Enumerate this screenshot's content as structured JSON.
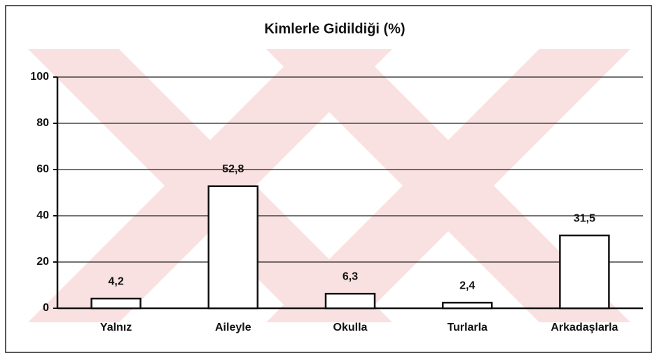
{
  "chart_data": {
    "type": "bar",
    "title": "Kimlerle Gidildiği (%)",
    "categories": [
      "Yalnız",
      "Aileyle",
      "Okulla",
      "Turlarla",
      "Arkadaşlarla"
    ],
    "values": [
      4.2,
      52.8,
      6.3,
      2.4,
      31.5
    ],
    "value_labels": [
      "4,2",
      "52,8",
      "6,3",
      "2,4",
      "31,5"
    ],
    "color": "#ffffff",
    "ylim": [
      0,
      100
    ],
    "yticks": [
      0,
      20,
      40,
      60,
      80,
      100
    ],
    "grid": true
  }
}
